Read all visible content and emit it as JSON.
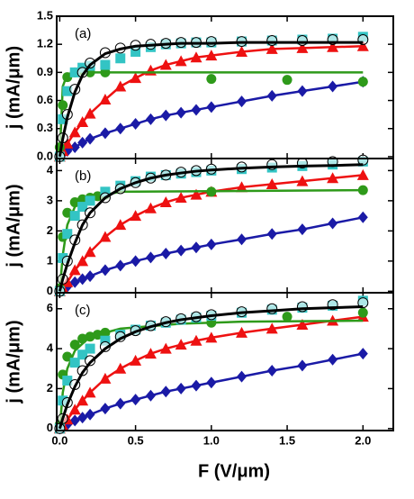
{
  "chart_data": [
    {
      "type": "line",
      "panel_label": "(a)",
      "ylabel": "j  (mA/μm)",
      "xlim": [
        -0.02,
        2.2
      ],
      "ylim": [
        -0.02,
        1.5
      ],
      "yticks": [
        {
          "value": 0,
          "label": "0.0"
        },
        0.3,
        0.6,
        0.9,
        1.2,
        1.5
      ],
      "x": [
        0,
        0.02,
        0.05,
        0.1,
        0.15,
        0.2,
        0.3,
        0.4,
        0.5,
        0.6,
        0.7,
        0.8,
        0.9,
        1.0,
        1.2,
        1.4,
        1.6,
        1.8,
        2.0
      ],
      "series": [
        {
          "color": "#1a1aa6",
          "marker": "diamond",
          "line": true,
          "values": [
            0,
            0.03,
            0.06,
            0.1,
            0.15,
            0.19,
            0.25,
            0.3,
            0.35,
            0.4,
            0.44,
            0.47,
            0.5,
            0.53,
            0.59,
            0.65,
            0.7,
            0.75,
            0.8
          ]
        },
        {
          "color": "#ee1111",
          "marker": "triangle",
          "line": true,
          "values": [
            0,
            0.06,
            0.14,
            0.26,
            0.37,
            0.46,
            0.61,
            0.75,
            0.84,
            0.92,
            0.98,
            1.02,
            1.06,
            1.08,
            1.12,
            1.15,
            1.16,
            1.17,
            1.18
          ]
        },
        {
          "color": "#2e9a1a",
          "marker": "circle",
          "line": false,
          "x": [
            0,
            0.02,
            0.05,
            0.1,
            0.15,
            0.2,
            0.3,
            1.0,
            1.5,
            2.0
          ],
          "values": [
            0.1,
            0.55,
            0.85,
            0.9,
            0.92,
            0.9,
            0.9,
            0.83,
            0.82,
            0.8
          ]
        },
        {
          "color": "#2e9a1a",
          "marker": "none",
          "line": true,
          "x": [
            0,
            0.02,
            0.05,
            0.1,
            2.0
          ],
          "values": [
            0,
            0.75,
            0.88,
            0.9,
            0.9
          ]
        },
        {
          "color": "#33c4c4",
          "marker": "square",
          "line": false,
          "values": [
            0,
            0.4,
            0.7,
            0.9,
            0.95,
            0.97,
            0.98,
            1.05,
            1.12,
            1.17,
            1.2,
            1.21,
            1.22,
            1.22,
            1.23,
            1.24,
            1.25,
            1.26,
            1.28
          ]
        },
        {
          "color": "#000000",
          "marker": "open-circle",
          "line": false,
          "values": [
            0,
            0.2,
            0.45,
            0.72,
            0.9,
            1.0,
            1.11,
            1.16,
            1.19,
            1.2,
            1.21,
            1.22,
            1.22,
            1.23,
            1.23,
            1.24,
            1.24,
            1.25,
            1.25
          ]
        },
        {
          "color": "#000000",
          "marker": "none",
          "line": true,
          "values": [
            0,
            0.19,
            0.42,
            0.69,
            0.87,
            0.98,
            1.1,
            1.15,
            1.18,
            1.19,
            1.2,
            1.21,
            1.21,
            1.21,
            1.22,
            1.22,
            1.22,
            1.22,
            1.22
          ]
        }
      ]
    },
    {
      "type": "line",
      "panel_label": "(b)",
      "ylabel": "j  (mA/μm)",
      "xlim": [
        -0.02,
        2.2
      ],
      "ylim": [
        -0.05,
        4.4
      ],
      "yticks": [
        0,
        1,
        2,
        3,
        4
      ],
      "x": [
        0,
        0.02,
        0.05,
        0.1,
        0.15,
        0.2,
        0.3,
        0.4,
        0.5,
        0.6,
        0.7,
        0.8,
        0.9,
        1.0,
        1.2,
        1.4,
        1.6,
        1.8,
        2.0
      ],
      "series": [
        {
          "color": "#1a1aa6",
          "marker": "diamond",
          "line": true,
          "values": [
            0,
            0.05,
            0.15,
            0.3,
            0.4,
            0.5,
            0.7,
            0.85,
            1.0,
            1.12,
            1.25,
            1.35,
            1.45,
            1.55,
            1.72,
            1.9,
            2.05,
            2.25,
            2.45
          ]
        },
        {
          "color": "#ee1111",
          "marker": "triangle",
          "line": true,
          "values": [
            0,
            0.1,
            0.3,
            0.7,
            1.0,
            1.3,
            1.8,
            2.2,
            2.5,
            2.75,
            2.95,
            3.1,
            3.2,
            3.3,
            3.45,
            3.55,
            3.65,
            3.75,
            3.85
          ]
        },
        {
          "color": "#2e9a1a",
          "marker": "circle",
          "line": false,
          "x": [
            0,
            0.02,
            0.05,
            0.1,
            0.15,
            0.2,
            0.25,
            0.3,
            1.0,
            2.0
          ],
          "values": [
            0.1,
            1.8,
            2.6,
            2.95,
            3.05,
            3.1,
            3.15,
            3.2,
            3.3,
            3.35
          ]
        },
        {
          "color": "#2e9a1a",
          "marker": "none",
          "line": true,
          "x": [
            0,
            0.02,
            0.05,
            0.1,
            0.2,
            0.4,
            2.0
          ],
          "values": [
            0,
            1.2,
            2.2,
            2.8,
            3.1,
            3.3,
            3.35
          ]
        },
        {
          "color": "#33c4c4",
          "marker": "square",
          "line": false,
          "values": [
            0,
            1.1,
            1.9,
            2.5,
            2.8,
            3.0,
            3.3,
            3.5,
            3.65,
            3.8,
            3.85,
            3.9,
            3.95,
            4.0,
            4.05,
            4.1,
            4.15,
            4.2,
            4.3
          ]
        },
        {
          "color": "#000000",
          "marker": "open-circle",
          "line": false,
          "values": [
            0,
            0.4,
            1.0,
            1.7,
            2.2,
            2.6,
            3.1,
            3.4,
            3.6,
            3.75,
            3.85,
            3.95,
            4.0,
            4.05,
            4.12,
            4.2,
            4.25,
            4.3,
            4.35
          ]
        },
        {
          "color": "#000000",
          "marker": "none",
          "line": true,
          "values": [
            0,
            0.4,
            0.9,
            1.6,
            2.2,
            2.6,
            3.1,
            3.4,
            3.6,
            3.75,
            3.85,
            3.92,
            3.98,
            4.02,
            4.08,
            4.12,
            4.15,
            4.17,
            4.2
          ]
        }
      ]
    },
    {
      "type": "line",
      "panel_label": "(c)",
      "ylabel": "j  (mA/μm)",
      "xlabel": "F  (V/μm)",
      "xlim": [
        -0.02,
        2.2
      ],
      "ylim": [
        -0.1,
        6.8
      ],
      "xticks": [
        {
          "value": 0,
          "label": "0.0"
        },
        0.5,
        {
          "value": 1,
          "label": "1.0"
        },
        1.5,
        {
          "value": 2,
          "label": "2.0"
        }
      ],
      "yticks": [
        0,
        2,
        4,
        6
      ],
      "x": [
        0,
        0.02,
        0.05,
        0.1,
        0.15,
        0.2,
        0.3,
        0.4,
        0.5,
        0.6,
        0.7,
        0.8,
        0.9,
        1.0,
        1.2,
        1.4,
        1.6,
        1.8,
        2.0
      ],
      "series": [
        {
          "color": "#1a1aa6",
          "marker": "diamond",
          "line": true,
          "values": [
            0,
            0.08,
            0.2,
            0.4,
            0.55,
            0.7,
            1.0,
            1.25,
            1.45,
            1.65,
            1.85,
            2.0,
            2.15,
            2.3,
            2.6,
            2.9,
            3.15,
            3.45,
            3.75
          ]
        },
        {
          "color": "#ee1111",
          "marker": "triangle",
          "line": true,
          "values": [
            0,
            0.15,
            0.45,
            0.95,
            1.4,
            1.8,
            2.5,
            3.0,
            3.4,
            3.75,
            4.0,
            4.2,
            4.4,
            4.55,
            4.8,
            5.0,
            5.2,
            5.4,
            5.6
          ]
        },
        {
          "color": "#2e9a1a",
          "marker": "circle",
          "line": false,
          "x": [
            0,
            0.02,
            0.05,
            0.1,
            0.15,
            0.2,
            0.25,
            0.3,
            1.0,
            1.5,
            2.0
          ],
          "values": [
            0.2,
            2.7,
            3.6,
            4.2,
            4.5,
            4.6,
            4.7,
            4.8,
            5.3,
            5.6,
            5.8
          ]
        },
        {
          "color": "#2e9a1a",
          "marker": "none",
          "line": true,
          "x": [
            0,
            0.02,
            0.05,
            0.1,
            0.2,
            0.4,
            0.8,
            1.2,
            2.0
          ],
          "values": [
            0,
            1.8,
            3.0,
            3.9,
            4.6,
            5.0,
            5.25,
            5.35,
            5.4
          ]
        },
        {
          "color": "#33c4c4",
          "marker": "square",
          "line": false,
          "values": [
            0,
            1.4,
            2.4,
            3.3,
            3.7,
            4.0,
            4.4,
            4.7,
            4.95,
            5.15,
            5.3,
            5.45,
            5.55,
            5.65,
            5.8,
            5.95,
            6.05,
            6.15,
            6.4
          ]
        },
        {
          "color": "#000000",
          "marker": "open-circle",
          "line": false,
          "values": [
            0,
            0.5,
            1.3,
            2.2,
            2.9,
            3.4,
            4.1,
            4.6,
            4.9,
            5.15,
            5.35,
            5.5,
            5.6,
            5.7,
            5.85,
            6.0,
            6.1,
            6.2,
            6.3
          ]
        },
        {
          "color": "#000000",
          "marker": "none",
          "line": true,
          "values": [
            0,
            0.5,
            1.2,
            2.1,
            2.8,
            3.3,
            4.0,
            4.5,
            4.85,
            5.1,
            5.3,
            5.45,
            5.55,
            5.65,
            5.8,
            5.9,
            6.0,
            6.05,
            6.1
          ]
        }
      ]
    }
  ]
}
